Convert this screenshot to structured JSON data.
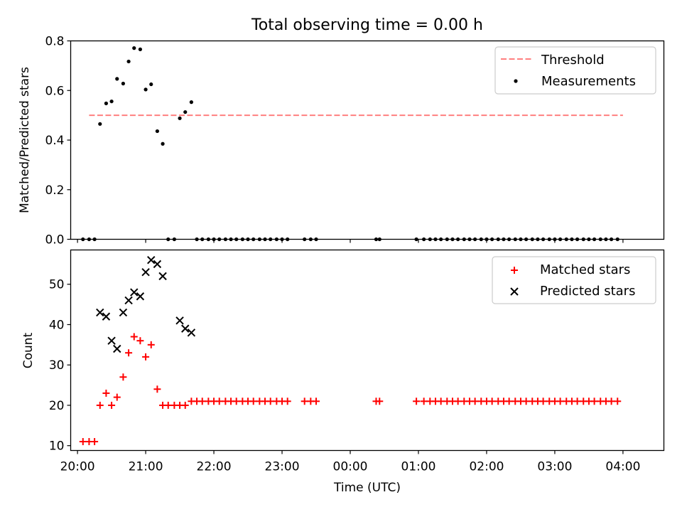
{
  "figure": {
    "title": "Total observing time = 0.00 h"
  },
  "colors": {
    "threshold": "#ff7f7f",
    "measurement": "#000000",
    "matched": "#ff0000",
    "predicted": "#000000"
  },
  "chart_data": [
    {
      "type": "scatter",
      "ylabel": "Matched/Predicted stars",
      "ylim": [
        0,
        0.8
      ],
      "yticks": [
        0.0,
        0.2,
        0.4,
        0.6,
        0.8
      ],
      "ytick_labels": [
        "0.0",
        "0.2",
        "0.4",
        "0.6",
        "0.8"
      ],
      "xlim": [
        -0.1,
        8.6
      ],
      "legend": {
        "position": "top-right",
        "entries": [
          "Threshold",
          "Measurements"
        ]
      },
      "threshold": {
        "name": "Threshold",
        "value": 0.5,
        "x_range": [
          0.17,
          8.0
        ]
      },
      "series": [
        {
          "name": "Measurements",
          "x": [
            0.08,
            0.17,
            0.25,
            0.33,
            0.42,
            0.5,
            0.58,
            0.67,
            0.75,
            0.83,
            0.92,
            1.0,
            1.08,
            1.17,
            1.25,
            1.33,
            1.42,
            1.5,
            1.58,
            1.67,
            1.75,
            1.83,
            1.92,
            2.0,
            2.08,
            2.17,
            2.25,
            2.33,
            2.42,
            2.5,
            2.58,
            2.67,
            2.75,
            2.83,
            2.92,
            3.0,
            3.08,
            3.33,
            3.42,
            3.5,
            4.38,
            4.43,
            4.97,
            5.08,
            5.17,
            5.25,
            5.33,
            5.42,
            5.5,
            5.58,
            5.67,
            5.75,
            5.83,
            5.92,
            6.0,
            6.08,
            6.17,
            6.25,
            6.33,
            6.42,
            6.5,
            6.58,
            6.67,
            6.75,
            6.83,
            6.92,
            7.0,
            7.08,
            7.17,
            7.25,
            7.33,
            7.42,
            7.5,
            7.58,
            7.67,
            7.75,
            7.83,
            7.92
          ],
          "y": [
            0,
            0,
            0,
            0.465,
            0.548,
            0.556,
            0.647,
            0.628,
            0.717,
            0.771,
            0.766,
            0.604,
            0.625,
            0.436,
            0.385,
            0,
            0,
            0.488,
            0.513,
            0.553,
            0,
            0,
            0,
            0,
            0,
            0,
            0,
            0,
            0,
            0,
            0,
            0,
            0,
            0,
            0,
            0,
            0,
            0,
            0,
            0,
            0,
            0,
            0,
            0,
            0,
            0,
            0,
            0,
            0,
            0,
            0,
            0,
            0,
            0,
            0,
            0,
            0,
            0,
            0,
            0,
            0,
            0,
            0,
            0,
            0,
            0,
            0,
            0,
            0,
            0,
            0,
            0,
            0,
            0,
            0,
            0,
            0,
            0
          ]
        }
      ]
    },
    {
      "type": "scatter",
      "ylabel": "Count",
      "xlabel": "Time (UTC)",
      "ylim": [
        8.8,
        58.5
      ],
      "yticks": [
        10,
        20,
        30,
        40,
        50
      ],
      "ytick_labels": [
        "10",
        "20",
        "30",
        "40",
        "50"
      ],
      "xlim": [
        -0.1,
        8.6
      ],
      "xticks": [
        0,
        1,
        2,
        3,
        4,
        5,
        6,
        7,
        8
      ],
      "xtick_labels": [
        "20:00",
        "21:00",
        "22:00",
        "23:00",
        "00:00",
        "01:00",
        "02:00",
        "03:00",
        "04:00"
      ],
      "legend": {
        "position": "top-right",
        "entries": [
          "Matched stars",
          "Predicted stars"
        ]
      },
      "series": [
        {
          "name": "Matched stars",
          "marker": "+",
          "x": [
            0.08,
            0.17,
            0.25,
            0.33,
            0.42,
            0.5,
            0.58,
            0.67,
            0.75,
            0.83,
            0.92,
            1.0,
            1.08,
            1.17,
            1.25,
            1.33,
            1.42,
            1.5,
            1.58,
            1.67,
            1.75,
            1.83,
            1.92,
            2.0,
            2.08,
            2.17,
            2.25,
            2.33,
            2.42,
            2.5,
            2.58,
            2.67,
            2.75,
            2.83,
            2.92,
            3.0,
            3.08,
            3.33,
            3.42,
            3.5,
            4.38,
            4.43,
            4.97,
            5.08,
            5.17,
            5.25,
            5.33,
            5.42,
            5.5,
            5.58,
            5.67,
            5.75,
            5.83,
            5.92,
            6.0,
            6.08,
            6.17,
            6.25,
            6.33,
            6.42,
            6.5,
            6.58,
            6.67,
            6.75,
            6.83,
            6.92,
            7.0,
            7.08,
            7.17,
            7.25,
            7.33,
            7.42,
            7.5,
            7.58,
            7.67,
            7.75,
            7.83,
            7.92
          ],
          "y": [
            11,
            11,
            11,
            20,
            23,
            20,
            22,
            27,
            33,
            37,
            36,
            32,
            35,
            24,
            20,
            20,
            20,
            20,
            20,
            21,
            21,
            21,
            21,
            21,
            21,
            21,
            21,
            21,
            21,
            21,
            21,
            21,
            21,
            21,
            21,
            21,
            21,
            21,
            21,
            21,
            21,
            21,
            21,
            21,
            21,
            21,
            21,
            21,
            21,
            21,
            21,
            21,
            21,
            21,
            21,
            21,
            21,
            21,
            21,
            21,
            21,
            21,
            21,
            21,
            21,
            21,
            21,
            21,
            21,
            21,
            21,
            21,
            21,
            21,
            21,
            21,
            21,
            21
          ]
        },
        {
          "name": "Predicted stars",
          "marker": "x",
          "x": [
            0.33,
            0.42,
            0.5,
            0.58,
            0.67,
            0.75,
            0.83,
            0.92,
            1.0,
            1.08,
            1.17,
            1.25,
            1.5,
            1.58,
            1.67
          ],
          "y": [
            43,
            42,
            36,
            34,
            43,
            46,
            48,
            47,
            53,
            56,
            55,
            52,
            41,
            39,
            38
          ]
        }
      ]
    }
  ]
}
